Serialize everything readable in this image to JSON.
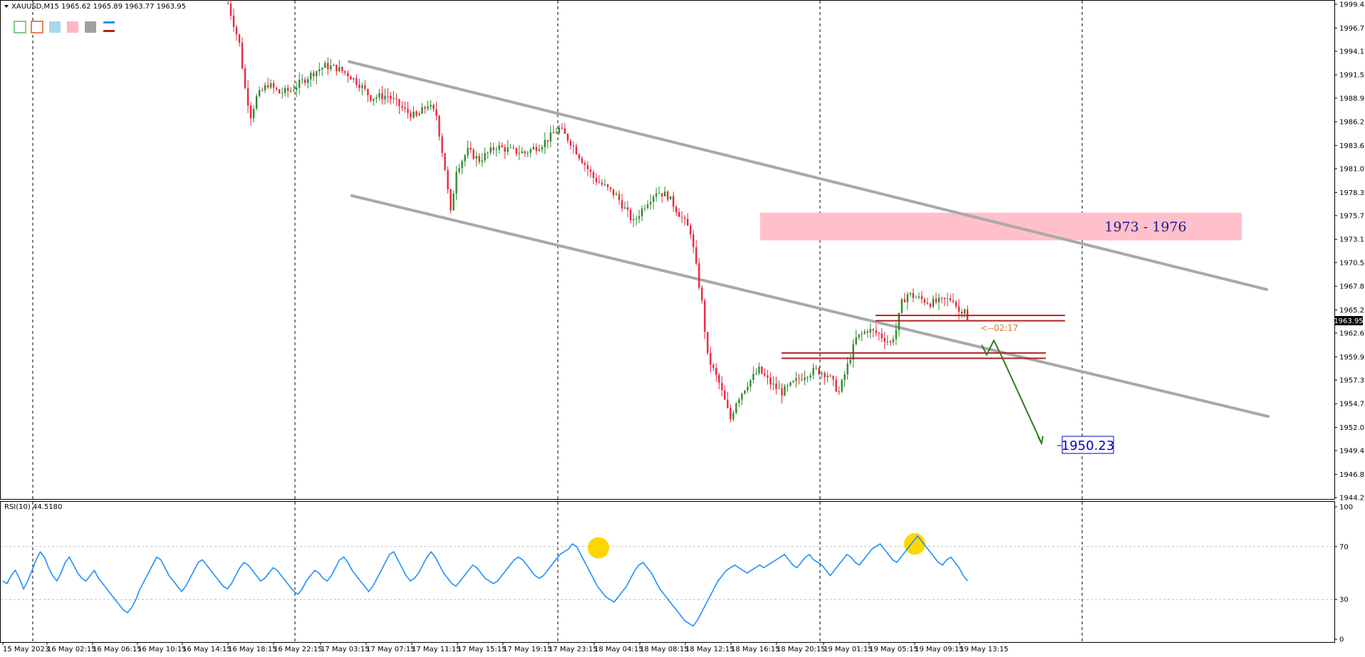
{
  "header": {
    "symbol_line": "XAUUSD,M15  1965.62 1965.89 1963.77 1963.95"
  },
  "toolbar": {
    "swatches": [
      "#7ed07e",
      "#f07c5a",
      "#a8d8ea",
      "#ffb6c1",
      "#a0a0a0"
    ],
    "line_colors": [
      "#1e90ff",
      "#b22222"
    ]
  },
  "colors": {
    "bull": "#2e8b2e",
    "bear": "#e8283c",
    "channel": "#a9a9a9",
    "zone": "#ffc0cb",
    "level": "#b22222",
    "arrow": "#2e7d1e",
    "rsi": "#1e90ff",
    "marker": "#ffd700"
  },
  "annotations": {
    "zone_label": "1973 - 1976",
    "target_label": "1950.23",
    "timer_label": "<--02:17",
    "current_price": "1963.95"
  },
  "chart_data": [
    {
      "type": "candlestick",
      "symbol": "XAUUSD",
      "timeframe": "M15",
      "ohlc_last": {
        "open": 1965.62,
        "high": 1965.89,
        "low": 1963.77,
        "close": 1963.95
      },
      "y_ticks": [
        "1999.42",
        "1996.77",
        "1994.17",
        "1991.52",
        "1988.92",
        "1986.27",
        "1983.62",
        "1981.02",
        "1978.37",
        "1975.77",
        "1973.12",
        "1970.52",
        "1967.87",
        "1965.22",
        "1962.62",
        "1959.97",
        "1957.37",
        "1954.72",
        "1952.07",
        "1949.47",
        "1946.82",
        "1944.22"
      ],
      "ylim": [
        1944.22,
        1999.42
      ],
      "x_ticks": [
        "15 May 2023",
        "16 May 02:15",
        "16 May 06:15",
        "16 May 10:15",
        "16 May 14:15",
        "16 May 18:15",
        "16 May 22:15",
        "17 May 03:15",
        "17 May 07:15",
        "17 May 11:15",
        "17 May 15:15",
        "17 May 19:15",
        "17 May 23:15",
        "18 May 04:15",
        "18 May 08:15",
        "18 May 12:15",
        "18 May 16:15",
        "18 May 20:15",
        "19 May 01:15",
        "19 May 05:15",
        "19 May 09:15",
        "19 May 13:15"
      ],
      "price_path": [
        [
          0,
          1999.5
        ],
        [
          4,
          1995
        ],
        [
          6,
          1990
        ],
        [
          8,
          1987
        ],
        [
          10,
          1989
        ],
        [
          14,
          1990.5
        ],
        [
          18,
          1989.5
        ],
        [
          22,
          1989.8
        ],
        [
          26,
          1990.8
        ],
        [
          30,
          1991.8
        ],
        [
          34,
          1992.5
        ],
        [
          38,
          1992.3
        ],
        [
          42,
          1991.6
        ],
        [
          46,
          1990.5
        ],
        [
          50,
          1989
        ],
        [
          56,
          1989.2
        ],
        [
          62,
          1987.5
        ],
        [
          66,
          1986.8
        ],
        [
          70,
          1988.2
        ],
        [
          73,
          1987
        ],
        [
          76,
          1981
        ],
        [
          78,
          1976
        ],
        [
          80,
          1981
        ],
        [
          84,
          1983
        ],
        [
          88,
          1982
        ],
        [
          94,
          1983.5
        ],
        [
          100,
          1983
        ],
        [
          104,
          1982.8
        ],
        [
          110,
          1983.8
        ],
        [
          116,
          1985.5
        ],
        [
          120,
          1984
        ],
        [
          124,
          1982
        ],
        [
          128,
          1980
        ],
        [
          132,
          1979
        ],
        [
          136,
          1978
        ],
        [
          140,
          1976
        ],
        [
          142,
          1975
        ],
        [
          146,
          1977
        ],
        [
          150,
          1978.5
        ],
        [
          154,
          1978
        ],
        [
          158,
          1976
        ],
        [
          162,
          1974
        ],
        [
          166,
          1966
        ],
        [
          168,
          1960
        ],
        [
          172,
          1957
        ],
        [
          176,
          1953
        ],
        [
          178,
          1955
        ],
        [
          182,
          1957
        ],
        [
          186,
          1958.5
        ],
        [
          190,
          1957
        ],
        [
          194,
          1956
        ],
        [
          198,
          1957
        ],
        [
          202,
          1958
        ],
        [
          206,
          1958.5
        ],
        [
          210,
          1958
        ],
        [
          214,
          1956
        ],
        [
          216,
          1958
        ],
        [
          218,
          1960
        ],
        [
          220,
          1962
        ],
        [
          224,
          1963
        ],
        [
          228,
          1962.5
        ],
        [
          232,
          1961.5
        ],
        [
          234,
          1963
        ],
        [
          236,
          1966
        ],
        [
          238,
          1967
        ],
        [
          242,
          1966.5
        ],
        [
          246,
          1966
        ],
        [
          250,
          1966.2
        ],
        [
          254,
          1966.5
        ],
        [
          256,
          1965
        ],
        [
          258,
          1965.5
        ],
        [
          259,
          1963.95
        ]
      ],
      "channel_upper": {
        "start": {
          "bar": 56,
          "price": 1993
        },
        "end": {
          "bar": 395,
          "price": 1967.5
        }
      },
      "channel_lower": {
        "start": {
          "bar": 57,
          "price": 1978
        },
        "end": {
          "bar": 395,
          "price": 1953.3
        }
      },
      "zone": {
        "from_price": 1973.0,
        "to_price": 1976.1,
        "label": "1973 - 1976"
      },
      "levels": [
        {
          "price": 1964.6,
          "from_bar": 238,
          "to_bar": 313
        },
        {
          "price": 1964.0,
          "from_bar": 238,
          "to_bar": 313
        },
        {
          "price": 1960.4,
          "from_bar": 202,
          "to_bar": 307
        },
        {
          "price": 1959.8,
          "from_bar": 202,
          "to_bar": 307
        }
      ],
      "projection": [
        {
          "bar": 288,
          "price": 1961.3
        },
        {
          "bar": 290,
          "price": 1960.2
        },
        {
          "bar": 294,
          "price": 1961.8
        },
        {
          "bar": 297,
          "price": 1960.2
        },
        {
          "bar": 310,
          "price": 1950.3
        }
      ],
      "target_price": 1950.23
    },
    {
      "type": "line",
      "title": "RSI(10) 44.5180",
      "y_ticks": [
        "100",
        "70",
        "30",
        "0"
      ],
      "ylim": [
        0,
        100
      ],
      "levels": [
        70,
        30
      ],
      "series": [
        {
          "name": "RSI(10)",
          "values": [
            44,
            42,
            48,
            52,
            46,
            38,
            44,
            52,
            60,
            66,
            62,
            54,
            48,
            44,
            50,
            58,
            62,
            56,
            50,
            46,
            44,
            48,
            52,
            46,
            42,
            38,
            34,
            30,
            26,
            22,
            20,
            24,
            30,
            38,
            44,
            50,
            56,
            62,
            60,
            54,
            48,
            44,
            40,
            36,
            40,
            46,
            52,
            58,
            60,
            56,
            52,
            48,
            44,
            40,
            38,
            42,
            48,
            54,
            58,
            56,
            52,
            48,
            44,
            46,
            50,
            54,
            52,
            48,
            44,
            40,
            36,
            34,
            38,
            44,
            48,
            52,
            50,
            46,
            44,
            48,
            54,
            60,
            62,
            58,
            52,
            48,
            44,
            40,
            36,
            40,
            46,
            52,
            58,
            64,
            66,
            60,
            54,
            48,
            44,
            46,
            50,
            56,
            62,
            66,
            62,
            56,
            50,
            46,
            42,
            40,
            44,
            48,
            52,
            56,
            54,
            50,
            46,
            44,
            42,
            44,
            48,
            52,
            56,
            60,
            62,
            60,
            56,
            52,
            48,
            46,
            48,
            52,
            56,
            60,
            64,
            66,
            68,
            72,
            70,
            64,
            58,
            52,
            46,
            40,
            36,
            32,
            30,
            28,
            32,
            36,
            40,
            46,
            52,
            56,
            58,
            54,
            50,
            44,
            38,
            34,
            30,
            26,
            22,
            18,
            14,
            12,
            10,
            14,
            20,
            26,
            32,
            38,
            44,
            48,
            52,
            54,
            56,
            54,
            52,
            50,
            52,
            54,
            56,
            54,
            56,
            58,
            60,
            62,
            64,
            60,
            56,
            54,
            58,
            62,
            64,
            60,
            58,
            56,
            52,
            48,
            52,
            56,
            60,
            64,
            62,
            58,
            56,
            60,
            64,
            68,
            70,
            72,
            68,
            64,
            60,
            58,
            62,
            66,
            70,
            74,
            78,
            74,
            70,
            66,
            62,
            58,
            56,
            60,
            62,
            58,
            54,
            48,
            44
          ]
        }
      ],
      "markers": [
        {
          "index": 140,
          "value": 69
        },
        {
          "index": 214,
          "value": 72
        }
      ],
      "last_value": 44.518
    }
  ]
}
